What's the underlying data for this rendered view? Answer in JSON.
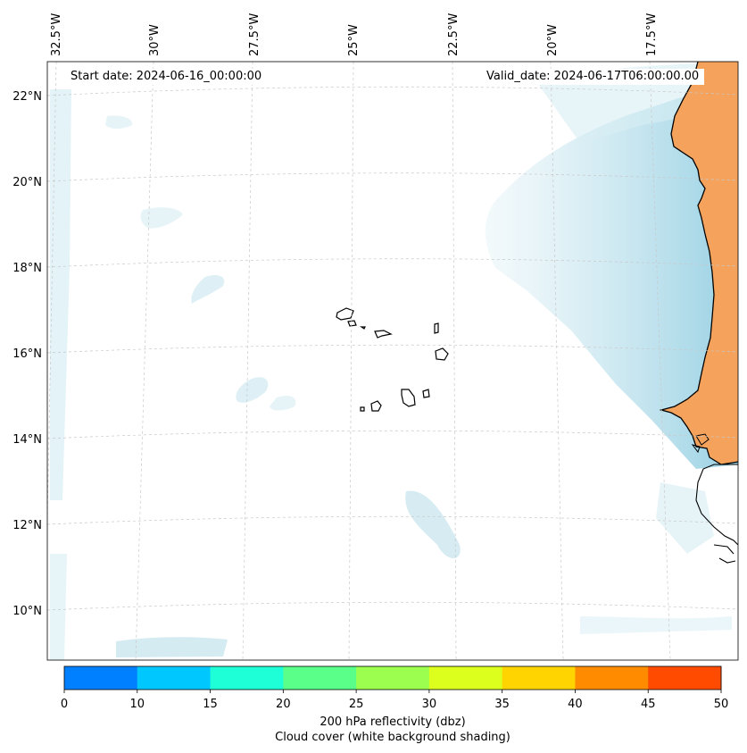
{
  "map": {
    "start_label": "Start date: 2024-06-16_00:00:00",
    "valid_label": "Valid_date: 2024-06-17T06:00:00.00",
    "lon_labels": [
      "32.5°W",
      "30°W",
      "27.5°W",
      "25°W",
      "22.5°W",
      "20°W",
      "17.5°W"
    ],
    "lat_labels": [
      "22°N",
      "20°N",
      "18°N",
      "16°N",
      "14°N",
      "12°N",
      "10°N"
    ],
    "land_color": "#f5a35c",
    "cloud_color": "#a9d8e4",
    "grid_style": "dashed light gray"
  },
  "colorbar": {
    "title": "200 hPa reflectivity (dbz)",
    "subtitle": "Cloud cover (white background shading)",
    "ticks": [
      "0",
      "10",
      "15",
      "20",
      "25",
      "30",
      "35",
      "40",
      "45",
      "50"
    ],
    "colors": [
      "#0080ff",
      "#00c8ff",
      "#1effd8",
      "#5aff8a",
      "#9cff50",
      "#dcff1e",
      "#ffd400",
      "#ff8c00",
      "#ff4b00"
    ]
  }
}
